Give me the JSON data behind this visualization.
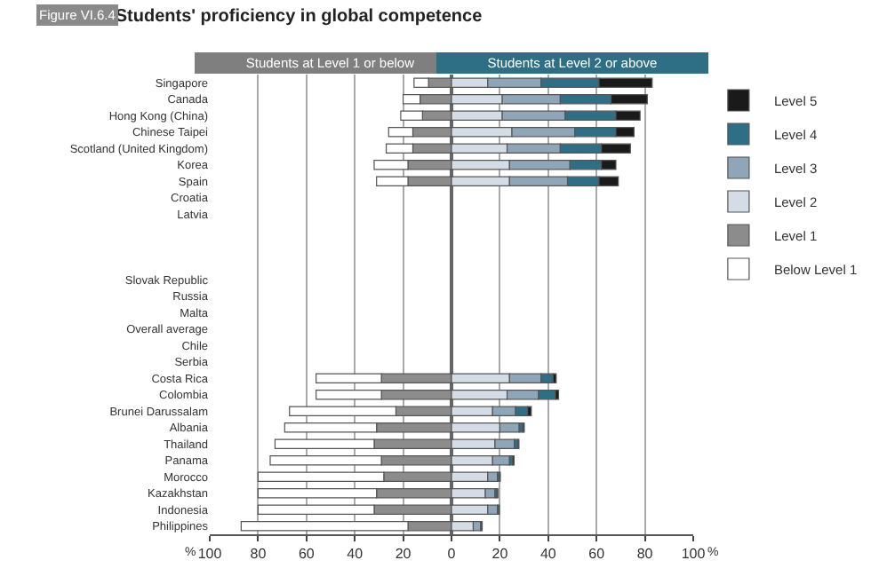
{
  "chart_data": {
    "type": "bar",
    "orientation": "horizontal",
    "stacked": true,
    "title": "Students' proficiency in global competence",
    "annotations": [
      "Figure VI.6.4",
      "Students at Level 1 or below",
      "Students at Level 2 or above",
      "%",
      "%"
    ],
    "categories": [
      "Singapore",
      "Canada",
      "Hong Kong (China)",
      "Chinese Taipei",
      "Scotland (United Kingdom)",
      "Korea",
      "Spain",
      "Croatia",
      "Latvia",
      null,
      null,
      null,
      "Slovak Republic",
      "Russia",
      "Malta",
      "Overall average",
      "Chile",
      "Serbia",
      "Costa Rica",
      "Colombia",
      "Brunei Darussalam",
      "Albania",
      "Thailand",
      "Panama",
      "Morocco",
      "Kazakhstan",
      "Indonesia",
      "Philippines"
    ],
    "series": [
      {
        "name": "Level 1",
        "color": "#8c8c8c",
        "values": [
          -9.5,
          -13,
          -12,
          -16,
          -16,
          -18,
          -18,
          null,
          null,
          null,
          null,
          null,
          null,
          null,
          null,
          null,
          null,
          null,
          -29,
          -29,
          -23,
          -31,
          -32,
          -29,
          -28,
          -31,
          -32,
          -18
        ]
      },
      {
        "name": "Below Level 1",
        "color": "#ffffff",
        "values": [
          -6,
          -7,
          -9,
          -10,
          -11,
          -14,
          -13,
          null,
          null,
          null,
          null,
          null,
          null,
          null,
          null,
          null,
          null,
          null,
          -27,
          -27,
          -44,
          -38,
          -41,
          -46,
          -52,
          -49,
          -48,
          -69
        ]
      },
      {
        "name": "Level 2",
        "color": "#d4dde6",
        "values": [
          15,
          21,
          21,
          25,
          23,
          24,
          24,
          null,
          null,
          null,
          null,
          null,
          null,
          null,
          null,
          null,
          null,
          null,
          24,
          23,
          17,
          20,
          18,
          17,
          15,
          14,
          15,
          9
        ]
      },
      {
        "name": "Level 3",
        "color": "#8fa5b8",
        "values": [
          22,
          24,
          26,
          26,
          22,
          25,
          24,
          null,
          null,
          null,
          null,
          null,
          null,
          null,
          null,
          null,
          null,
          null,
          13,
          13,
          9.5,
          8,
          8,
          7,
          4,
          4,
          4,
          3
        ]
      },
      {
        "name": "Level 4",
        "color": "#2e6f86",
        "values": [
          24,
          21,
          21,
          17,
          17,
          13,
          13,
          null,
          null,
          null,
          null,
          null,
          null,
          null,
          null,
          null,
          null,
          null,
          5,
          7,
          5,
          1.5,
          1.5,
          1.3,
          0.8,
          0.8,
          0.6,
          0.5
        ]
      },
      {
        "name": "Level 5",
        "color": "#1a1a1a",
        "values": [
          22,
          15,
          10,
          7.5,
          12,
          6,
          8,
          null,
          null,
          null,
          null,
          null,
          null,
          null,
          null,
          null,
          null,
          null,
          1.3,
          1.3,
          1.5,
          0.6,
          0.4,
          0.6,
          0.4,
          0.4,
          0.2,
          0.2
        ]
      }
    ],
    "xlim": [
      -100,
      100
    ],
    "xticks": [
      {
        "value": -100,
        "label": "100"
      },
      {
        "value": -80,
        "label": "80"
      },
      {
        "value": -60,
        "label": "60"
      },
      {
        "value": -40,
        "label": "40"
      },
      {
        "value": -20,
        "label": "20"
      },
      0,
      20,
      40,
      60,
      80,
      100
    ],
    "grid": "x",
    "legend": "top right"
  }
}
